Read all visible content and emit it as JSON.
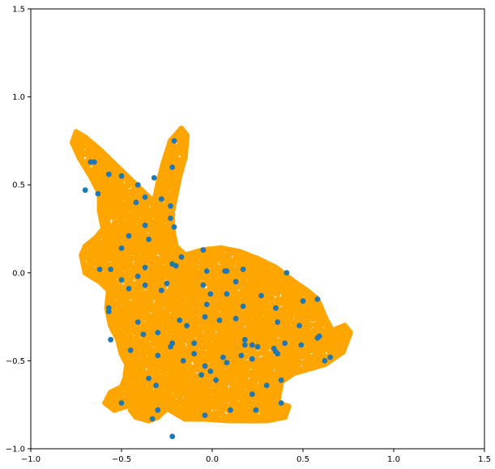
{
  "chart_data": {
    "type": "scatter",
    "title": "",
    "xlabel": "",
    "ylabel": "",
    "xlim": [
      -1.0,
      1.5
    ],
    "ylim": [
      -1.0,
      1.5
    ],
    "xticks": [
      -1.0,
      -0.5,
      0.0,
      0.5,
      1.0,
      1.5
    ],
    "yticks": [
      -1.0,
      -0.5,
      0.0,
      0.5,
      1.0,
      1.5
    ],
    "xtick_labels": [
      "−1.0",
      "−0.5",
      "0.0",
      "0.5",
      "1.0",
      "1.5"
    ],
    "ytick_labels": [
      "−1.0",
      "−0.5",
      "0.0",
      "0.5",
      "1.0",
      "1.5"
    ],
    "grid": false,
    "legend": "none",
    "series": [
      {
        "color": "#FFA500",
        "shape": "bunny point cloud (dense)",
        "polygon": [
          [
            -0.75,
            0.8
          ],
          [
            -0.7,
            0.77
          ],
          [
            -0.62,
            0.7
          ],
          [
            -0.54,
            0.62
          ],
          [
            -0.46,
            0.54
          ],
          [
            -0.38,
            0.46
          ],
          [
            -0.32,
            0.4
          ],
          [
            -0.3,
            0.5
          ],
          [
            -0.27,
            0.62
          ],
          [
            -0.23,
            0.75
          ],
          [
            -0.17,
            0.82
          ],
          [
            -0.14,
            0.78
          ],
          [
            -0.15,
            0.66
          ],
          [
            -0.18,
            0.55
          ],
          [
            -0.2,
            0.45
          ],
          [
            -0.22,
            0.35
          ],
          [
            -0.22,
            0.25
          ],
          [
            -0.2,
            0.15
          ],
          [
            -0.15,
            0.1
          ],
          [
            -0.05,
            0.13
          ],
          [
            0.05,
            0.14
          ],
          [
            0.15,
            0.12
          ],
          [
            0.25,
            0.08
          ],
          [
            0.35,
            0.03
          ],
          [
            0.45,
            -0.05
          ],
          [
            0.52,
            -0.1
          ],
          [
            0.58,
            -0.15
          ],
          [
            0.62,
            -0.25
          ],
          [
            0.66,
            -0.33
          ],
          [
            0.73,
            -0.3
          ],
          [
            0.76,
            -0.34
          ],
          [
            0.72,
            -0.45
          ],
          [
            0.62,
            -0.52
          ],
          [
            0.52,
            -0.55
          ],
          [
            0.45,
            -0.57
          ],
          [
            0.38,
            -0.62
          ],
          [
            0.36,
            -0.74
          ],
          [
            0.42,
            -0.76
          ],
          [
            0.4,
            -0.82
          ],
          [
            0.3,
            -0.84
          ],
          [
            0.1,
            -0.84
          ],
          [
            -0.05,
            -0.83
          ],
          [
            -0.15,
            -0.83
          ],
          [
            -0.2,
            -0.8
          ],
          [
            -0.25,
            -0.77
          ],
          [
            -0.3,
            -0.82
          ],
          [
            -0.35,
            -0.84
          ],
          [
            -0.42,
            -0.82
          ],
          [
            -0.45,
            -0.78
          ],
          [
            -0.46,
            -0.72
          ],
          [
            -0.48,
            -0.76
          ],
          [
            -0.54,
            -0.78
          ],
          [
            -0.59,
            -0.74
          ],
          [
            -0.56,
            -0.68
          ],
          [
            -0.5,
            -0.65
          ],
          [
            -0.48,
            -0.6
          ],
          [
            -0.47,
            -0.52
          ],
          [
            -0.5,
            -0.46
          ],
          [
            -0.52,
            -0.38
          ],
          [
            -0.56,
            -0.3
          ],
          [
            -0.58,
            -0.2
          ],
          [
            -0.57,
            -0.1
          ],
          [
            -0.62,
            -0.05
          ],
          [
            -0.7,
            0.0
          ],
          [
            -0.72,
            0.1
          ],
          [
            -0.7,
            0.15
          ],
          [
            -0.64,
            0.2
          ],
          [
            -0.6,
            0.25
          ],
          [
            -0.62,
            0.35
          ],
          [
            -0.62,
            0.45
          ],
          [
            -0.67,
            0.55
          ],
          [
            -0.73,
            0.65
          ],
          [
            -0.77,
            0.74
          ]
        ]
      },
      {
        "color": "#1f77b4",
        "points": [
          [
            -0.21,
            0.75
          ],
          [
            -0.67,
            0.63
          ],
          [
            -0.65,
            0.63
          ],
          [
            -0.22,
            0.6
          ],
          [
            -0.57,
            0.56
          ],
          [
            -0.5,
            0.55
          ],
          [
            -0.32,
            0.54
          ],
          [
            -0.41,
            0.5
          ],
          [
            -0.7,
            0.47
          ],
          [
            -0.63,
            0.45
          ],
          [
            -0.37,
            0.43
          ],
          [
            -0.28,
            0.42
          ],
          [
            -0.42,
            0.4
          ],
          [
            -0.23,
            0.38
          ],
          [
            -0.23,
            0.31
          ],
          [
            -0.37,
            0.27
          ],
          [
            -0.21,
            0.26
          ],
          [
            -0.46,
            0.21
          ],
          [
            -0.35,
            0.19
          ],
          [
            -0.5,
            0.14
          ],
          [
            -0.05,
            0.13
          ],
          [
            -0.17,
            0.09
          ],
          [
            -0.22,
            0.05
          ],
          [
            -0.2,
            0.04
          ],
          [
            -0.37,
            0.03
          ],
          [
            -0.62,
            0.02
          ],
          [
            -0.56,
            0.02
          ],
          [
            0.07,
            0.01
          ],
          [
            0.08,
            0.01
          ],
          [
            -0.03,
            0.01
          ],
          [
            0.17,
            0.02
          ],
          [
            0.41,
            0.0
          ],
          [
            -0.41,
            -0.02
          ],
          [
            -0.05,
            -0.07
          ],
          [
            0.13,
            -0.05
          ],
          [
            -0.25,
            -0.06
          ],
          [
            -0.5,
            -0.04
          ],
          [
            -0.46,
            -0.09
          ],
          [
            -0.37,
            -0.07
          ],
          [
            -0.28,
            -0.1
          ],
          [
            -0.01,
            -0.12
          ],
          [
            0.08,
            -0.12
          ],
          [
            0.27,
            -0.13
          ],
          [
            0.5,
            -0.16
          ],
          [
            0.58,
            -0.15
          ],
          [
            -0.57,
            -0.2
          ],
          [
            -0.57,
            -0.22
          ],
          [
            -0.03,
            -0.18
          ],
          [
            0.17,
            -0.19
          ],
          [
            0.35,
            -0.2
          ],
          [
            -0.04,
            -0.25
          ],
          [
            0.04,
            -0.27
          ],
          [
            0.13,
            -0.26
          ],
          [
            -0.41,
            -0.28
          ],
          [
            -0.18,
            -0.27
          ],
          [
            0.36,
            -0.28
          ],
          [
            -0.14,
            -0.3
          ],
          [
            0.48,
            -0.3
          ],
          [
            -0.3,
            -0.34
          ],
          [
            -0.38,
            -0.35
          ],
          [
            -0.56,
            -0.38
          ],
          [
            0.18,
            -0.38
          ],
          [
            0.58,
            -0.37
          ],
          [
            0.59,
            -0.36
          ],
          [
            -0.22,
            -0.4
          ],
          [
            -0.1,
            -0.4
          ],
          [
            0.18,
            -0.41
          ],
          [
            0.22,
            -0.41
          ],
          [
            0.25,
            -0.42
          ],
          [
            0.34,
            -0.43
          ],
          [
            0.4,
            -0.4
          ],
          [
            0.49,
            -0.41
          ],
          [
            -0.23,
            -0.42
          ],
          [
            -0.45,
            -0.44
          ],
          [
            0.35,
            -0.45
          ],
          [
            0.36,
            -0.46
          ],
          [
            -0.1,
            -0.46
          ],
          [
            -0.3,
            -0.47
          ],
          [
            0.06,
            -0.48
          ],
          [
            0.16,
            -0.47
          ],
          [
            0.22,
            -0.49
          ],
          [
            0.65,
            -0.48
          ],
          [
            -0.16,
            -0.5
          ],
          [
            0.08,
            -0.51
          ],
          [
            0.62,
            -0.5
          ],
          [
            -0.04,
            -0.53
          ],
          [
            -0.01,
            -0.56
          ],
          [
            -0.06,
            -0.58
          ],
          [
            -0.35,
            -0.6
          ],
          [
            0.02,
            -0.61
          ],
          [
            0.38,
            -0.61
          ],
          [
            0.3,
            -0.64
          ],
          [
            -0.31,
            -0.64
          ],
          [
            0.22,
            -0.69
          ],
          [
            -0.5,
            -0.74
          ],
          [
            0.38,
            -0.74
          ],
          [
            -0.3,
            -0.78
          ],
          [
            0.1,
            -0.78
          ],
          [
            0.24,
            -0.78
          ],
          [
            -0.04,
            -0.81
          ],
          [
            -0.33,
            -0.83
          ],
          [
            -0.22,
            -0.93
          ]
        ]
      }
    ]
  }
}
